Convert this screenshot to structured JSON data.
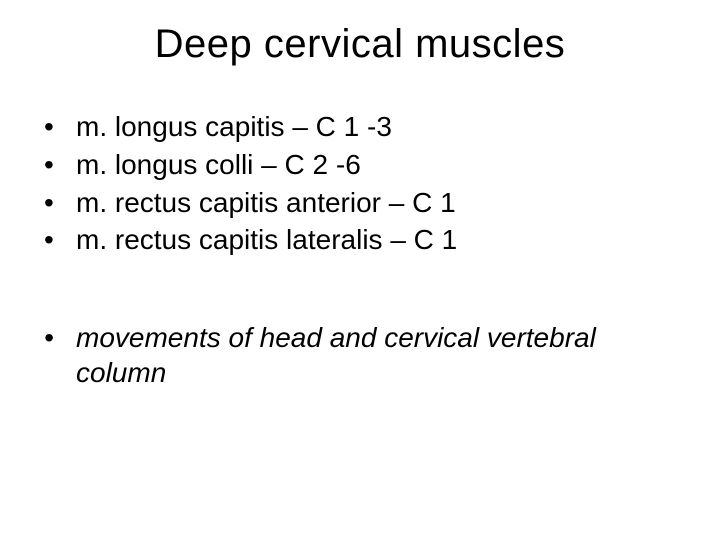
{
  "slide": {
    "title": "Deep cervical muscles",
    "bullet_char": "•",
    "items": [
      "m. longus capitis – C 1 -3",
      "m. longus colli – C 2 -6",
      "m. rectus capitis anterior – C 1",
      "m. rectus capitis lateralis – C 1"
    ],
    "note": "movements of head and cervical vertebral column",
    "colors": {
      "background": "#ffffff",
      "text": "#000000"
    },
    "typography": {
      "title_fontsize_pt": 30,
      "body_fontsize_pt": 21,
      "font_family": "Arial"
    }
  }
}
